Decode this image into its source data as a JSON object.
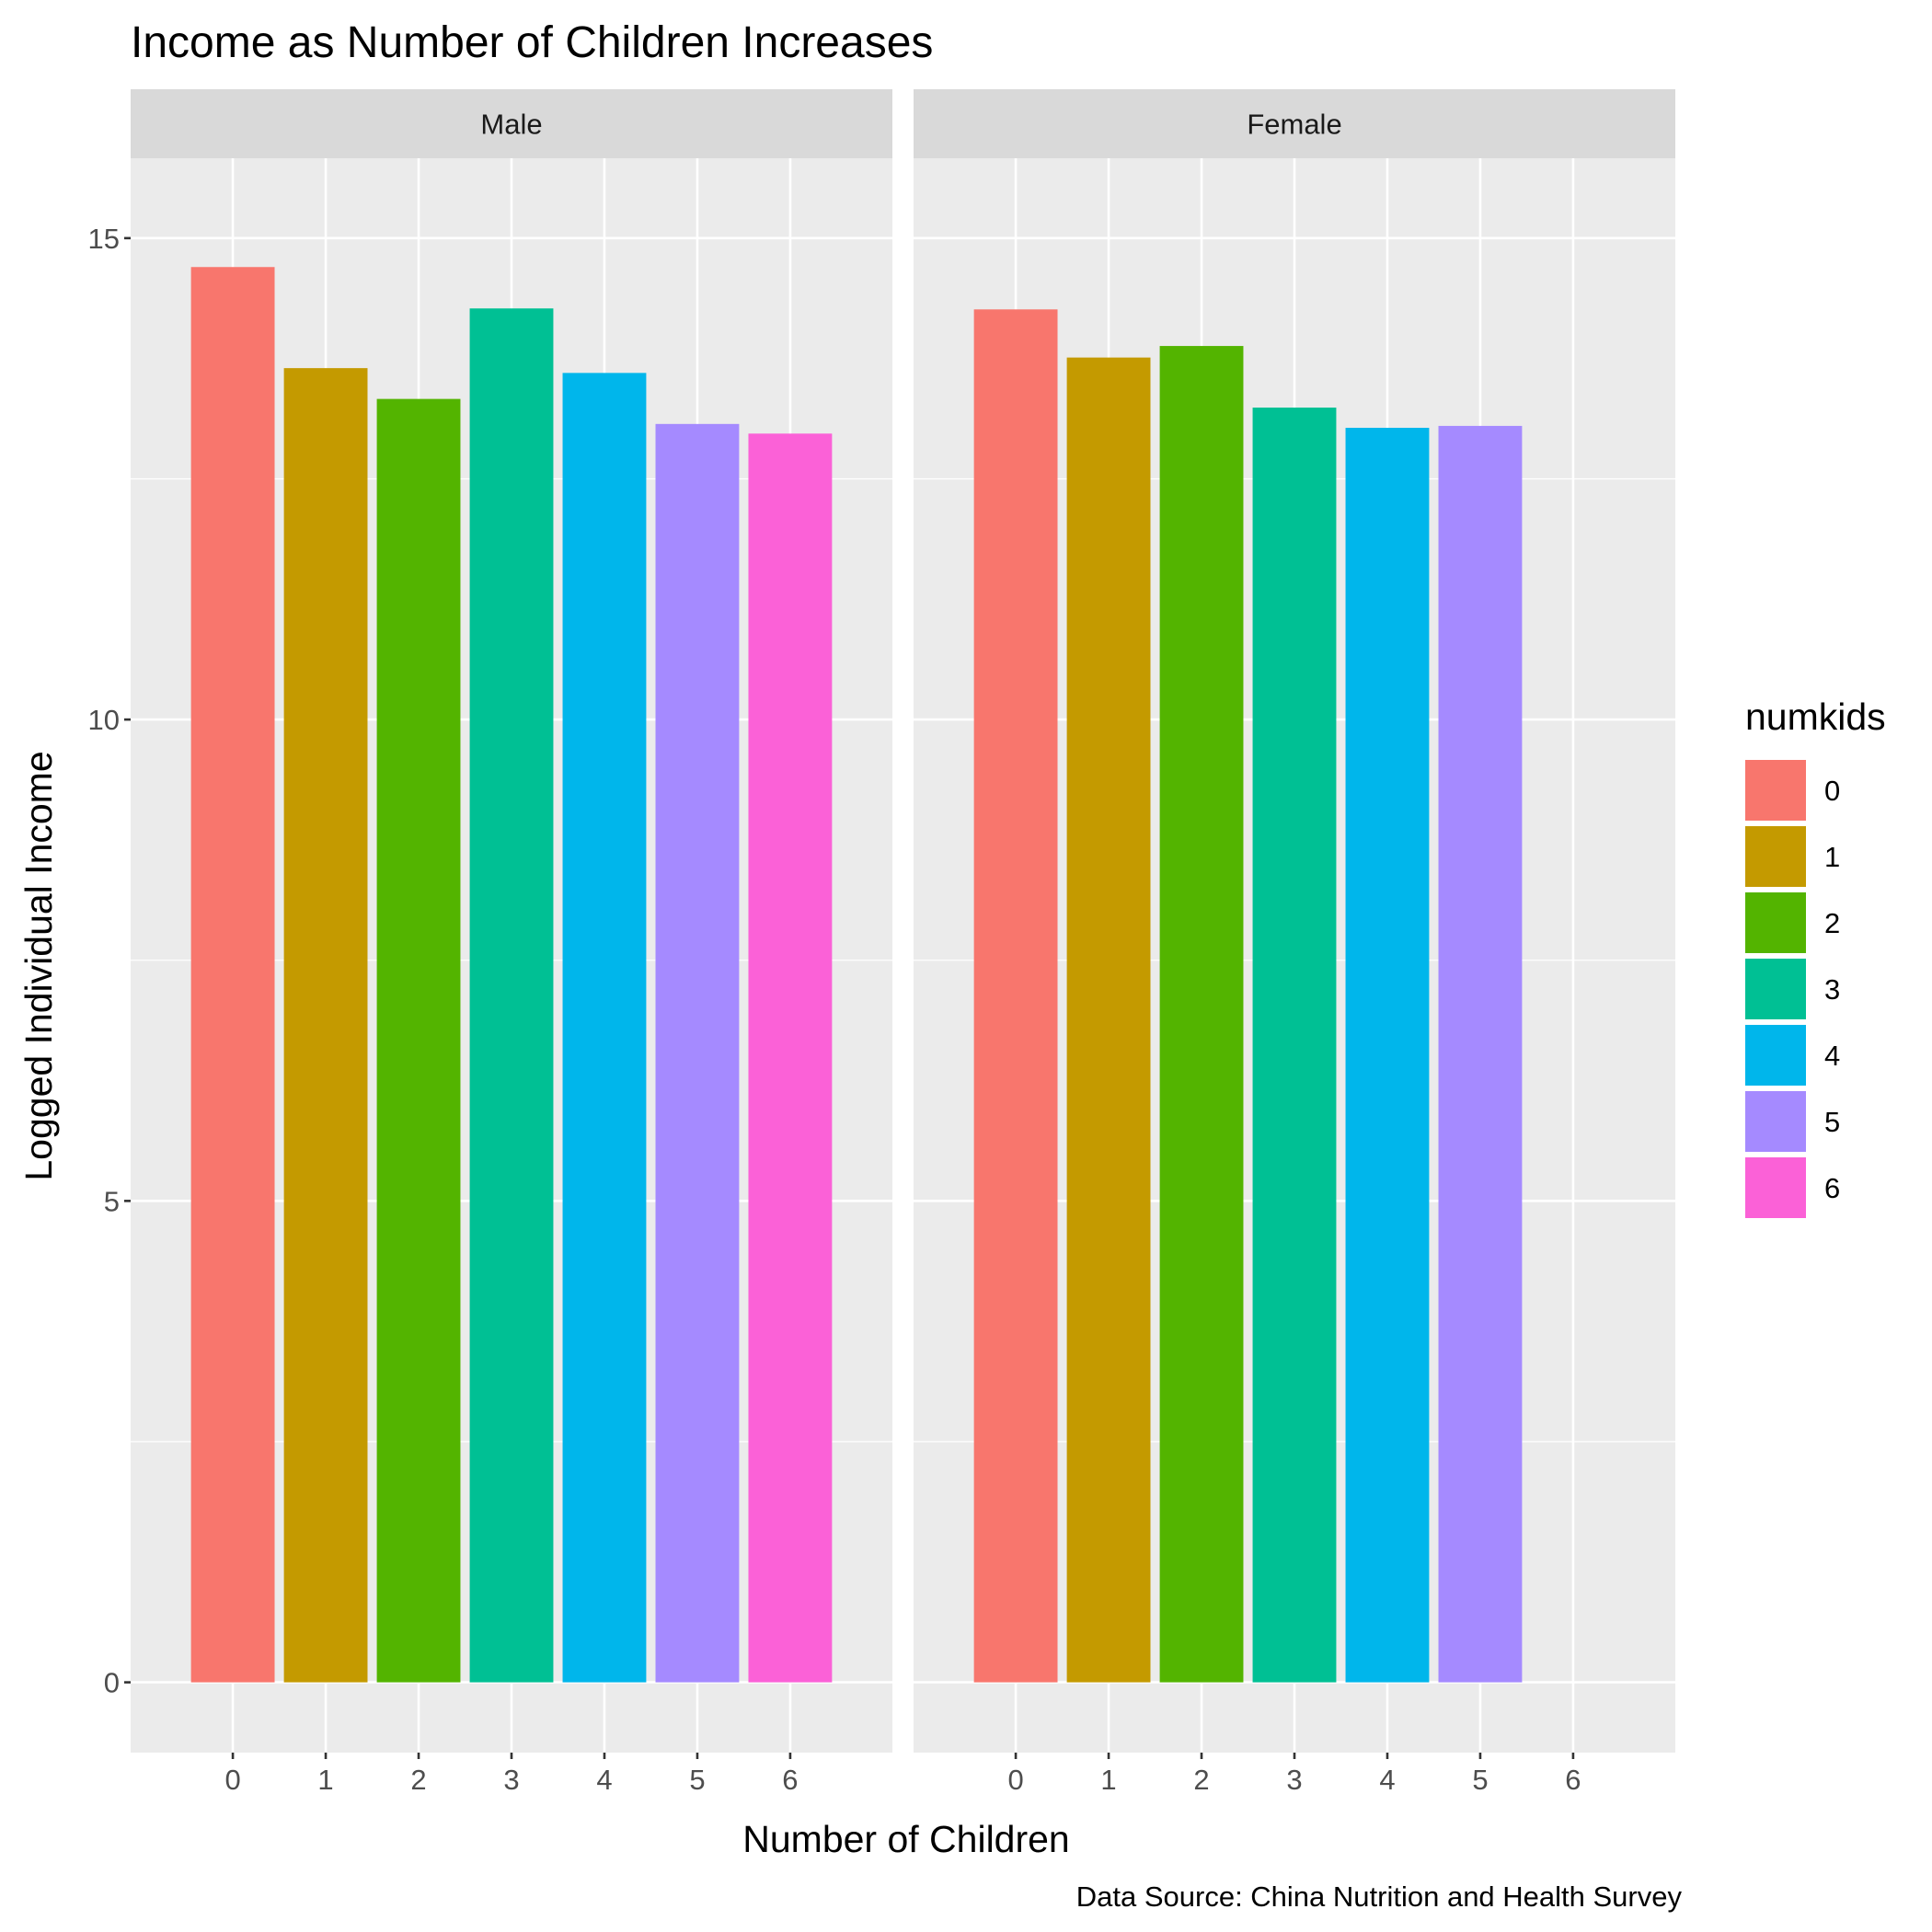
{
  "chart_data": {
    "type": "bar",
    "title": "Income as Number of Children Increases",
    "xlabel": "Number of Children",
    "ylabel": "Logged Individual Income",
    "caption": "Data Source: China Nutrition and Health Survey",
    "categories": [
      "0",
      "1",
      "2",
      "3",
      "4",
      "5",
      "6"
    ],
    "ylim": [
      -0.73,
      15.83
    ],
    "yticks": [
      0,
      5,
      10,
      15
    ],
    "ytick_labels": [
      "0",
      "5",
      "10",
      "15"
    ],
    "grid": true,
    "legend": {
      "title": "numkids",
      "position": "right",
      "labels": [
        "0",
        "1",
        "2",
        "3",
        "4",
        "5",
        "6"
      ]
    },
    "colors": [
      "#F8766D",
      "#C49A00",
      "#53B400",
      "#00C094",
      "#00B6EB",
      "#A58AFF",
      "#FB61D7"
    ],
    "panels": [
      {
        "name": "Male",
        "values": [
          14.7,
          13.65,
          13.33,
          14.27,
          13.6,
          13.07,
          12.97
        ]
      },
      {
        "name": "Female",
        "values": [
          14.26,
          13.76,
          13.88,
          13.24,
          13.03,
          13.05,
          null
        ]
      }
    ]
  }
}
